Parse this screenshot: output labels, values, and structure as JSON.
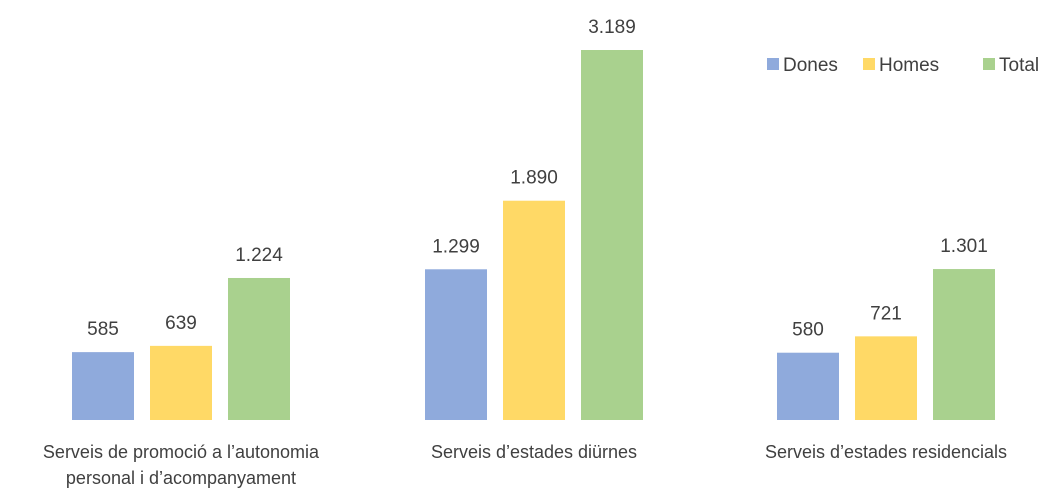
{
  "chart_data": {
    "type": "bar",
    "categories": [
      [
        "Serveis de promoció a l’autonomia",
        "personal i d’acompanyament"
      ],
      [
        "Serveis d’estades diürnes"
      ],
      [
        "Serveis d’estades residencials"
      ]
    ],
    "series": [
      {
        "name": "Dones",
        "color": "#8FAADC",
        "values": [
          585,
          1299,
          580
        ],
        "labels": [
          "585",
          "1.299",
          "580"
        ]
      },
      {
        "name": "Homes",
        "color": "#FFD966",
        "values": [
          639,
          1890,
          721
        ],
        "labels": [
          "639",
          "1.890",
          "721"
        ]
      },
      {
        "name": "Total",
        "color": "#A9D18E",
        "values": [
          1224,
          3189,
          1301
        ],
        "labels": [
          "1.224",
          "3.189",
          "1.301"
        ]
      }
    ],
    "title": "",
    "xlabel": "",
    "ylabel": "",
    "ylim": [
      0,
      3189
    ],
    "grid": false,
    "legend_position": "top-right"
  }
}
